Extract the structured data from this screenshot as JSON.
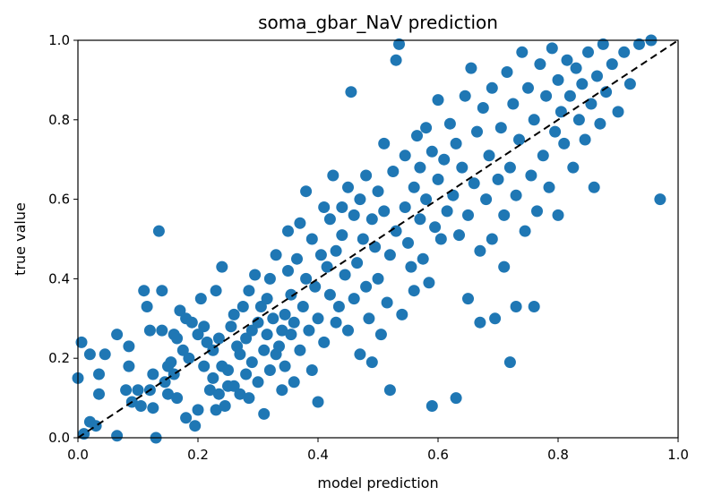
{
  "chart_data": {
    "type": "scatter",
    "title": "soma_gbar_NaV prediction",
    "xlabel": "model prediction",
    "ylabel": "true value",
    "xlim": [
      0.0,
      1.0
    ],
    "ylim": [
      0.0,
      1.0
    ],
    "xticks": [
      "0.0",
      "0.2",
      "0.4",
      "0.6",
      "0.8",
      "1.0"
    ],
    "yticks": [
      "0.0",
      "0.2",
      "0.4",
      "0.6",
      "0.8",
      "1.0"
    ],
    "grid": false,
    "legend": "none",
    "point_color": "#1f77b4",
    "reference_line": {
      "style": "dashed",
      "color": "#000000",
      "from": [
        0,
        0
      ],
      "to": [
        1,
        1
      ]
    },
    "series": [
      {
        "points": [
          [
            0.0,
            0.15
          ],
          [
            0.006,
            0.24
          ],
          [
            0.01,
            0.01
          ],
          [
            0.02,
            0.04
          ],
          [
            0.02,
            0.21
          ],
          [
            0.03,
            0.03
          ],
          [
            0.035,
            0.11
          ],
          [
            0.035,
            0.16
          ],
          [
            0.045,
            0.21
          ],
          [
            0.065,
            0.26
          ],
          [
            0.065,
            0.005
          ],
          [
            0.08,
            0.12
          ],
          [
            0.085,
            0.23
          ],
          [
            0.085,
            0.18
          ],
          [
            0.09,
            0.09
          ],
          [
            0.1,
            0.12
          ],
          [
            0.105,
            0.08
          ],
          [
            0.11,
            0.37
          ],
          [
            0.115,
            0.33
          ],
          [
            0.12,
            0.27
          ],
          [
            0.12,
            0.12
          ],
          [
            0.125,
            0.16
          ],
          [
            0.125,
            0.075
          ],
          [
            0.13,
            0.0
          ],
          [
            0.135,
            0.52
          ],
          [
            0.14,
            0.37
          ],
          [
            0.14,
            0.27
          ],
          [
            0.145,
            0.14
          ],
          [
            0.15,
            0.11
          ],
          [
            0.15,
            0.18
          ],
          [
            0.155,
            0.19
          ],
          [
            0.16,
            0.16
          ],
          [
            0.16,
            0.26
          ],
          [
            0.165,
            0.1
          ],
          [
            0.165,
            0.25
          ],
          [
            0.17,
            0.32
          ],
          [
            0.175,
            0.22
          ],
          [
            0.18,
            0.3
          ],
          [
            0.18,
            0.05
          ],
          [
            0.185,
            0.2
          ],
          [
            0.19,
            0.29
          ],
          [
            0.195,
            0.03
          ],
          [
            0.2,
            0.26
          ],
          [
            0.2,
            0.07
          ],
          [
            0.205,
            0.35
          ],
          [
            0.21,
            0.28
          ],
          [
            0.21,
            0.18
          ],
          [
            0.215,
            0.24
          ],
          [
            0.22,
            0.12
          ],
          [
            0.225,
            0.22
          ],
          [
            0.225,
            0.15
          ],
          [
            0.23,
            0.37
          ],
          [
            0.23,
            0.07
          ],
          [
            0.235,
            0.11
          ],
          [
            0.235,
            0.25
          ],
          [
            0.24,
            0.43
          ],
          [
            0.24,
            0.18
          ],
          [
            0.245,
            0.08
          ],
          [
            0.25,
            0.13
          ],
          [
            0.25,
            0.17
          ],
          [
            0.255,
            0.28
          ],
          [
            0.26,
            0.31
          ],
          [
            0.26,
            0.13
          ],
          [
            0.265,
            0.23
          ],
          [
            0.27,
            0.21
          ],
          [
            0.27,
            0.11
          ],
          [
            0.275,
            0.33
          ],
          [
            0.28,
            0.16
          ],
          [
            0.28,
            0.25
          ],
          [
            0.285,
            0.37
          ],
          [
            0.285,
            0.1
          ],
          [
            0.29,
            0.19
          ],
          [
            0.29,
            0.27
          ],
          [
            0.295,
            0.41
          ],
          [
            0.3,
            0.29
          ],
          [
            0.3,
            0.14
          ],
          [
            0.305,
            0.33
          ],
          [
            0.31,
            0.22
          ],
          [
            0.31,
            0.06
          ],
          [
            0.315,
            0.35
          ],
          [
            0.315,
            0.26
          ],
          [
            0.32,
            0.4
          ],
          [
            0.32,
            0.17
          ],
          [
            0.325,
            0.3
          ],
          [
            0.33,
            0.46
          ],
          [
            0.33,
            0.21
          ],
          [
            0.335,
            0.23
          ],
          [
            0.34,
            0.27
          ],
          [
            0.34,
            0.12
          ],
          [
            0.345,
            0.31
          ],
          [
            0.345,
            0.18
          ],
          [
            0.35,
            0.42
          ],
          [
            0.35,
            0.52
          ],
          [
            0.355,
            0.36
          ],
          [
            0.355,
            0.26
          ],
          [
            0.36,
            0.14
          ],
          [
            0.36,
            0.29
          ],
          [
            0.365,
            0.45
          ],
          [
            0.37,
            0.22
          ],
          [
            0.37,
            0.54
          ],
          [
            0.375,
            0.33
          ],
          [
            0.38,
            0.62
          ],
          [
            0.38,
            0.4
          ],
          [
            0.385,
            0.27
          ],
          [
            0.39,
            0.5
          ],
          [
            0.39,
            0.17
          ],
          [
            0.395,
            0.38
          ],
          [
            0.4,
            0.09
          ],
          [
            0.4,
            0.3
          ],
          [
            0.405,
            0.46
          ],
          [
            0.41,
            0.58
          ],
          [
            0.41,
            0.24
          ],
          [
            0.415,
            0.43
          ],
          [
            0.42,
            0.55
          ],
          [
            0.42,
            0.36
          ],
          [
            0.425,
            0.66
          ],
          [
            0.43,
            0.47
          ],
          [
            0.43,
            0.29
          ],
          [
            0.435,
            0.33
          ],
          [
            0.44,
            0.58
          ],
          [
            0.44,
            0.51
          ],
          [
            0.445,
            0.41
          ],
          [
            0.45,
            0.63
          ],
          [
            0.45,
            0.27
          ],
          [
            0.455,
            0.87
          ],
          [
            0.46,
            0.56
          ],
          [
            0.46,
            0.35
          ],
          [
            0.465,
            0.44
          ],
          [
            0.47,
            0.21
          ],
          [
            0.47,
            0.6
          ],
          [
            0.475,
            0.5
          ],
          [
            0.48,
            0.38
          ],
          [
            0.48,
            0.66
          ],
          [
            0.485,
            0.3
          ],
          [
            0.49,
            0.55
          ],
          [
            0.49,
            0.19
          ],
          [
            0.495,
            0.48
          ],
          [
            0.5,
            0.62
          ],
          [
            0.5,
            0.4
          ],
          [
            0.505,
            0.26
          ],
          [
            0.51,
            0.74
          ],
          [
            0.51,
            0.57
          ],
          [
            0.515,
            0.34
          ],
          [
            0.52,
            0.46
          ],
          [
            0.52,
            0.12
          ],
          [
            0.525,
            0.67
          ],
          [
            0.53,
            0.52
          ],
          [
            0.53,
            0.95
          ],
          [
            0.535,
            0.99
          ],
          [
            0.54,
            0.31
          ],
          [
            0.545,
            0.58
          ],
          [
            0.545,
            0.71
          ],
          [
            0.55,
            0.49
          ],
          [
            0.555,
            0.43
          ],
          [
            0.56,
            0.63
          ],
          [
            0.56,
            0.37
          ],
          [
            0.565,
            0.76
          ],
          [
            0.57,
            0.55
          ],
          [
            0.57,
            0.68
          ],
          [
            0.575,
            0.45
          ],
          [
            0.58,
            0.78
          ],
          [
            0.58,
            0.6
          ],
          [
            0.585,
            0.39
          ],
          [
            0.59,
            0.08
          ],
          [
            0.59,
            0.72
          ],
          [
            0.595,
            0.53
          ],
          [
            0.6,
            0.65
          ],
          [
            0.6,
            0.85
          ],
          [
            0.605,
            0.5
          ],
          [
            0.61,
            0.7
          ],
          [
            0.615,
            0.57
          ],
          [
            0.62,
            0.79
          ],
          [
            0.625,
            0.61
          ],
          [
            0.63,
            0.1
          ],
          [
            0.63,
            0.74
          ],
          [
            0.635,
            0.51
          ],
          [
            0.64,
            0.68
          ],
          [
            0.645,
            0.86
          ],
          [
            0.65,
            0.35
          ],
          [
            0.65,
            0.56
          ],
          [
            0.655,
            0.93
          ],
          [
            0.66,
            0.64
          ],
          [
            0.665,
            0.77
          ],
          [
            0.67,
            0.47
          ],
          [
            0.67,
            0.29
          ],
          [
            0.675,
            0.83
          ],
          [
            0.68,
            0.6
          ],
          [
            0.685,
            0.71
          ],
          [
            0.69,
            0.88
          ],
          [
            0.69,
            0.5
          ],
          [
            0.695,
            0.3
          ],
          [
            0.7,
            0.65
          ],
          [
            0.705,
            0.78
          ],
          [
            0.71,
            0.43
          ],
          [
            0.71,
            0.56
          ],
          [
            0.715,
            0.92
          ],
          [
            0.72,
            0.19
          ],
          [
            0.72,
            0.68
          ],
          [
            0.725,
            0.84
          ],
          [
            0.73,
            0.33
          ],
          [
            0.73,
            0.61
          ],
          [
            0.735,
            0.75
          ],
          [
            0.74,
            0.97
          ],
          [
            0.745,
            0.52
          ],
          [
            0.75,
            0.88
          ],
          [
            0.755,
            0.66
          ],
          [
            0.76,
            0.33
          ],
          [
            0.76,
            0.8
          ],
          [
            0.765,
            0.57
          ],
          [
            0.77,
            0.94
          ],
          [
            0.775,
            0.71
          ],
          [
            0.78,
            0.86
          ],
          [
            0.785,
            0.63
          ],
          [
            0.79,
            0.98
          ],
          [
            0.795,
            0.77
          ],
          [
            0.8,
            0.56
          ],
          [
            0.8,
            0.9
          ],
          [
            0.805,
            0.82
          ],
          [
            0.81,
            0.74
          ],
          [
            0.815,
            0.95
          ],
          [
            0.82,
            0.86
          ],
          [
            0.825,
            0.68
          ],
          [
            0.83,
            0.93
          ],
          [
            0.835,
            0.8
          ],
          [
            0.84,
            0.89
          ],
          [
            0.845,
            0.75
          ],
          [
            0.85,
            0.97
          ],
          [
            0.855,
            0.84
          ],
          [
            0.86,
            0.63
          ],
          [
            0.865,
            0.91
          ],
          [
            0.87,
            0.79
          ],
          [
            0.875,
            0.99
          ],
          [
            0.88,
            0.87
          ],
          [
            0.89,
            0.94
          ],
          [
            0.9,
            0.82
          ],
          [
            0.91,
            0.97
          ],
          [
            0.92,
            0.89
          ],
          [
            0.935,
            0.99
          ],
          [
            0.955,
            1.0
          ],
          [
            0.97,
            0.6
          ]
        ]
      }
    ]
  }
}
